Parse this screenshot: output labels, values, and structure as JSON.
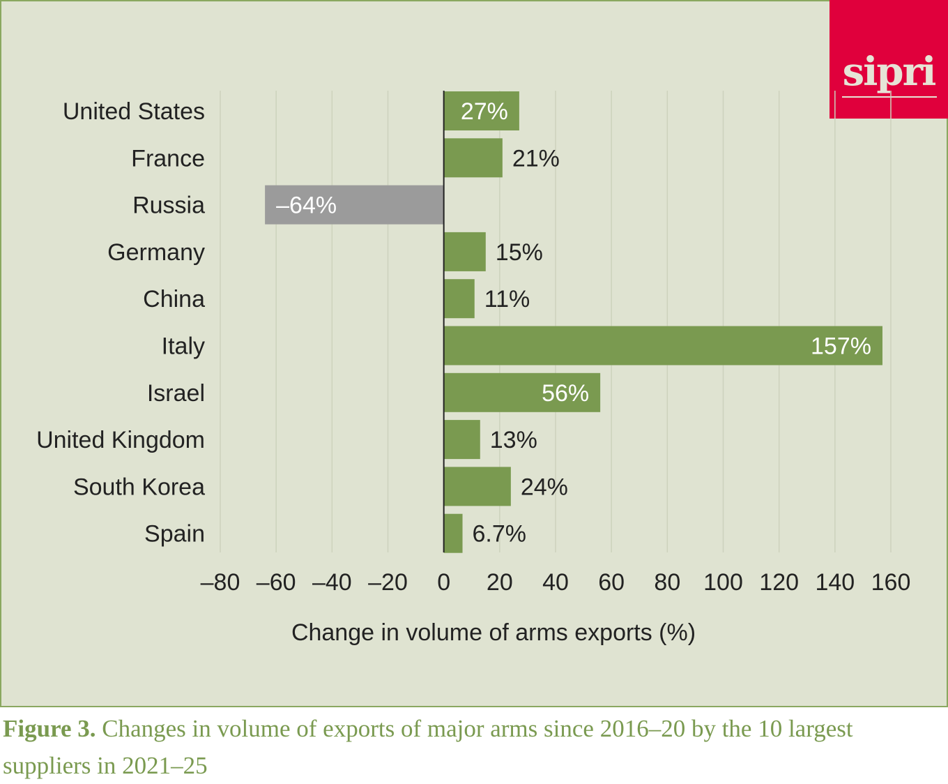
{
  "logo": "sipri",
  "caption": {
    "label": "Figure 3.",
    "text": " Changes in volume of exports of major arms since 2016–20 by the 10 largest suppliers in 2021–25"
  },
  "colors": {
    "positive": "#7a9a50",
    "negative": "#9b9b9b",
    "background": "#dfe3d1",
    "logo": "#e0003c"
  },
  "chart_data": {
    "type": "bar",
    "orientation": "horizontal",
    "categories": [
      "United States",
      "France",
      "Russia",
      "Germany",
      "China",
      "Italy",
      "Israel",
      "United Kingdom",
      "South Korea",
      "Spain"
    ],
    "values": [
      27,
      21,
      -64,
      15,
      11,
      157,
      56,
      13,
      24,
      6.7
    ],
    "data_labels": [
      "27%",
      "21%",
      "–64%",
      "15%",
      "11%",
      "157%",
      "56%",
      "13%",
      "24%",
      "6.7%"
    ],
    "xlabel": "Change in volume of arms exports (%)",
    "xlim": [
      -80,
      160
    ],
    "xticks": [
      -80,
      -60,
      -40,
      -20,
      0,
      20,
      40,
      60,
      80,
      100,
      120,
      140,
      160
    ],
    "xtick_labels": [
      "–80",
      "–60",
      "–40",
      "–20",
      "0",
      "20",
      "40",
      "60",
      "80",
      "100",
      "120",
      "140",
      "160"
    ],
    "grid": "vertical"
  }
}
